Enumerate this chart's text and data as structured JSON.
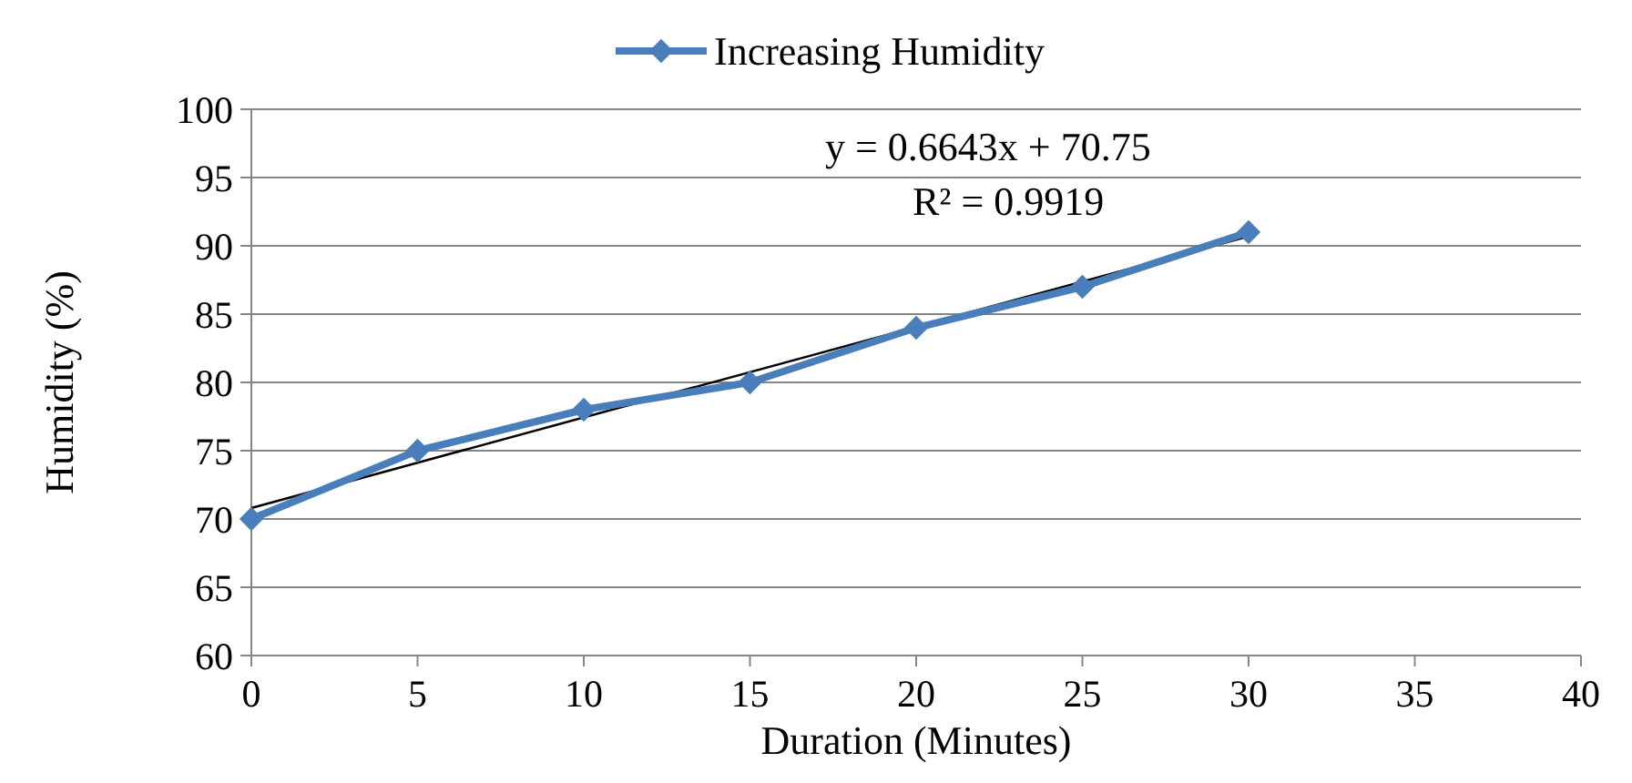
{
  "chart_data": {
    "type": "line",
    "xlabel": "Duration (Minutes)",
    "ylabel": "Humidity (%)",
    "x": [
      0,
      5,
      10,
      15,
      20,
      25,
      30
    ],
    "series": [
      {
        "name": "Increasing Humidity",
        "color": "#4a7ebb",
        "marker": "diamond",
        "values": [
          70,
          75,
          78,
          80,
          84,
          87,
          91
        ]
      },
      {
        "type": "line",
        "color": "#000000",
        "marker": "none",
        "x": [
          0,
          30
        ],
        "values": [
          70.8,
          90.7
        ]
      }
    ],
    "xlim": [
      0,
      40
    ],
    "xticks": [
      0,
      5,
      10,
      15,
      20,
      25,
      30,
      35,
      40
    ],
    "ylim": [
      60,
      100
    ],
    "yticks": [
      60,
      65,
      70,
      75,
      80,
      85,
      90,
      95,
      100
    ],
    "grid": "y",
    "legend": "top",
    "annotations": [
      "y = 0.6643x  + 70.75",
      "R² = 0.9919"
    ]
  }
}
